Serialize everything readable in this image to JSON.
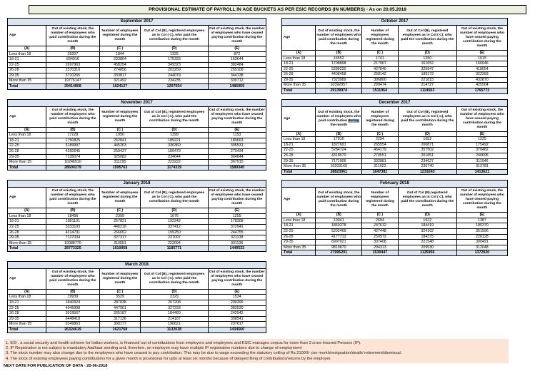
{
  "title": "PROVISIONAL ESTIMATE OF PAYROLL IN AGE BUCKETS AS PER ESIC RECORDS (IN NUMBERS) - As on 20.05.2018",
  "columns": {
    "age": "Age",
    "b": "Out of existing stock, the number of employees who paid contribution during the month",
    "c": "Number of employees registered during the month",
    "d": "Out of Col (B), registered employees as in Col ( C), who paid the contribution during the month",
    "e": "Out of existing stock, the number of  employees  who have ceased paying contribution during the month",
    "sub": [
      "(A)",
      "(B)",
      "(C )",
      "(D)",
      "(E)"
    ]
  },
  "age_groups": [
    "Less than 18",
    "18-21",
    "22-25",
    "26-28",
    "29-35",
    "More than 35"
  ],
  "total_label": "Total",
  "tables": [
    {
      "month": "September 2017",
      "rows": [
        [
          25207,
          1844,
          1325,
          872
        ],
        [
          834916,
          233864,
          175333,
          163644
        ],
        [
          2697963,
          458254,
          349323,
          382484
        ],
        [
          2370310,
          274856,
          203259,
          265109
        ],
        [
          3710265,
          333817,
          244079,
          344138
        ],
        [
          19776147,
          321492,
          234235,
          330712
        ]
      ],
      "totals": [
        29414808,
        1624127,
        1207554,
        1486959
      ]
    },
    {
      "month": "October 2017",
      "rows": [
        [
          16552,
          1741,
          1250,
          1015
        ],
        [
          1708898,
          217967,
          161652,
          166046
        ],
        [
          5289220,
          427840,
          325947,
          418054
        ],
        [
          4408458,
          258142,
          189172,
          322283
        ],
        [
          7323989,
          306800,
          221815,
          432870
        ],
        [
          10392857,
          299474,
          214727,
          425504
        ]
      ],
      "totals": [
        29139974,
        1511964,
        1114563,
        1765772
      ]
    },
    {
      "month": "November 2017",
      "rows": [
        [
          17228,
          1950,
          1399,
          1153
        ],
        [
          1750825,
          252841,
          189221,
          180663
        ],
        [
          5189997,
          445263,
          336360,
          395531
        ],
        [
          4260645,
          259437,
          189473,
          279434
        ],
        [
          7135074,
          325082,
          234644,
          364644
        ],
        [
          10246510,
          311190,
          223222,
          367915
        ]
      ],
      "totals": [
        28600279,
        1595763,
        1174319,
        1589340
      ]
    },
    {
      "month": "December 2017",
      "highlight_word": "during",
      "rows": [
        [
          17910,
          2294,
          1652,
          1225
        ],
        [
          1827691,
          265554,
          200871,
          175492
        ],
        [
          5284724,
          464179,
          357502,
          370482
        ],
        [
          4318570,
          270551,
          201851,
          240695
        ],
        [
          7171906,
          332881,
          234627,
          311946
        ],
        [
          10203160,
          311922,
          236740,
          313781
        ]
      ],
      "totals": [
        28823961,
        1647381,
        1233243,
        1413621
      ]
    },
    {
      "month": "January 2018",
      "rows": [
        [
          18496,
          2399,
          1676,
          1255
        ],
        [
          1891101,
          257821,
          192242,
          178308
        ],
        [
          5333193,
          446218,
          337412,
          372941
        ],
        [
          4314731,
          266652,
          195250,
          244755
        ],
        [
          7127034,
          327317,
          237097,
          321138
        ],
        [
          10088770,
          310551,
          222094,
          331136
        ]
      ],
      "totals": [
        28773325,
        1610958,
        1185771,
        1449533
      ]
    },
    {
      "month": "February 2018",
      "d_header": "Out of Col (B),registered employees as in Col ( C), who paid the contribution during the month",
      "rows": [
        [
          19041,
          2694,
          1922,
          1387
        ],
        [
          1869378,
          247612,
          184419,
          180370
        ],
        [
          5202469,
          427448,
          324162,
          351596
        ],
        [
          4177712,
          250972,
          184375,
          226128
        ],
        [
          6907021,
          307408,
          221548,
          300491
        ],
        [
          9819670,
          294313,
          209530,
          312048
        ]
      ],
      "totals": [
        27995291,
        1530447,
        1125956,
        1372020
      ]
    },
    {
      "month": "March 2018",
      "rows": [
        [
          19939,
          3529,
          2329,
          1534
        ],
        [
          1840924,
          287838,
          207208,
          200396
        ],
        [
          4945908,
          447901,
          327233,
          383530
        ],
        [
          3919567,
          265187,
          184460,
          242942
        ],
        [
          6448418,
          317136,
          214187,
          308541
        ],
        [
          9149863,
          300177,
          196621,
          297617
        ]
      ],
      "totals": [
        26324619,
        1621768,
        1132038,
        1434560
      ]
    }
  ],
  "notes": [
    "1. ESI , a social security and health scheme for Indian workers, is financed out of contributions from employers and employees and ESIC manages corpus for more than 3 crore Insured Persons (IP).",
    "2. IP Registration is not subject to mandatory Aadhaar seeding and, therefore, an employee may have multiple IP registration numbers due to change of employment",
    "3. The stock number may also change due to the employees who have ceased to pay contribution. This may  be due to wage exceeding the statutory ceiling of  Rs.21000/- per month/resignation/death/ retirement/dismissal.",
    "4. The stock of existing employees paying contributions for a given month is provisional for upto at least six months because of delayed filing of contributions/returns by the employer."
  ],
  "next_date": "NEXT DATE FOR PUBLICATION OF DATA - 20-06-2018",
  "colors": {
    "title_bg": "#ebf1de",
    "month_header_bg": "#dce6f1",
    "total_row_bg": "#dce6f1",
    "notes_bg": "#fce4d6",
    "selection_highlight": "#95b3d7",
    "border": "#000000"
  }
}
